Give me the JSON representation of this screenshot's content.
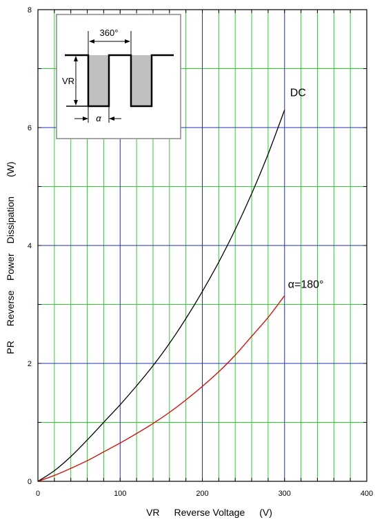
{
  "chart_data": {
    "type": "line",
    "title": "",
    "xlabel": "VR  Reverse Voltage  (V)",
    "ylabel": "PR  Reverse Power Dissipation  (W)",
    "xlim": [
      0,
      400
    ],
    "ylim": [
      0,
      8
    ],
    "x_ticks": [
      "0",
      "100",
      "200",
      "300",
      "400"
    ],
    "y_ticks": [
      "0",
      "2",
      "4",
      "6",
      "8"
    ],
    "x_minor_step": 20,
    "y_minor_step": 1,
    "grid": true,
    "grid_colors": {
      "major": "#1f2bbd",
      "minor": "#28d228"
    },
    "series": [
      {
        "name": "DC",
        "color": "#000000",
        "x": [
          0,
          20,
          40,
          60,
          80,
          100,
          120,
          140,
          160,
          180,
          200,
          220,
          240,
          260,
          280,
          300
        ],
        "y": [
          0,
          0.18,
          0.42,
          0.7,
          1.0,
          1.3,
          1.62,
          1.96,
          2.34,
          2.76,
          3.22,
          3.72,
          4.27,
          4.88,
          5.55,
          6.3
        ]
      },
      {
        "name": "α=180°",
        "color": "#e00000",
        "x": [
          0,
          20,
          40,
          60,
          80,
          100,
          120,
          140,
          160,
          180,
          200,
          220,
          240,
          260,
          280,
          300
        ],
        "y": [
          0,
          0.1,
          0.22,
          0.35,
          0.5,
          0.65,
          0.81,
          0.98,
          1.17,
          1.38,
          1.61,
          1.86,
          2.14,
          2.46,
          2.78,
          3.15
        ]
      }
    ],
    "inset": {
      "labels": {
        "period": "360°",
        "amplitude": "VR",
        "conduction": "α"
      }
    }
  }
}
